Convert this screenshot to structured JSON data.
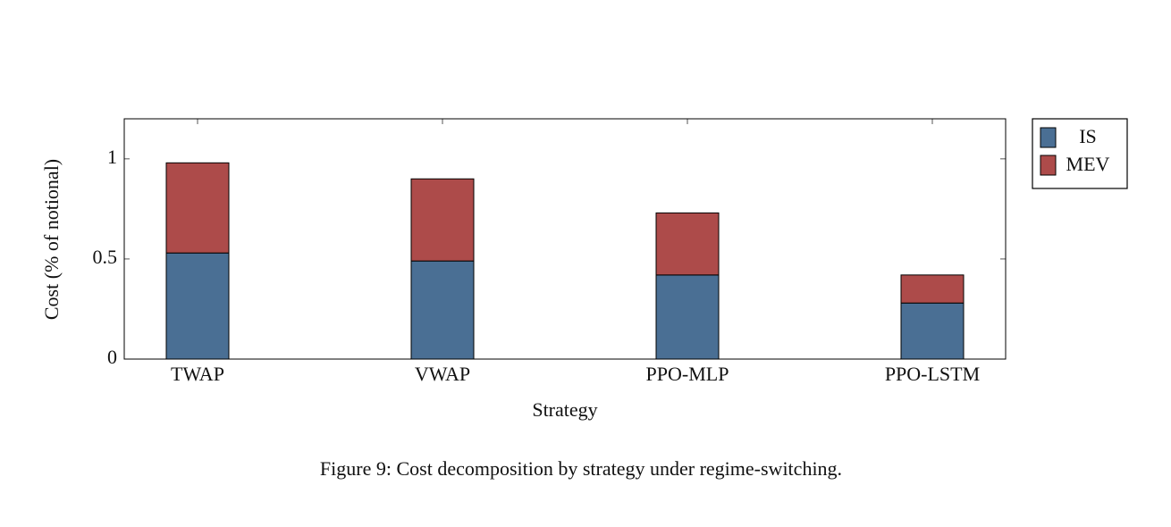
{
  "chart_data": {
    "type": "stacked-bar",
    "caption": "Figure 9: Cost decomposition by strategy under regime-switching.",
    "xlabel": "Strategy",
    "ylabel": "Cost (% of notional)",
    "categories": [
      "TWAP",
      "VWAP",
      "PPO-MLP",
      "PPO-LSTM"
    ],
    "series": [
      {
        "name": "IS",
        "color": "#4a6f94",
        "values": [
          0.53,
          0.49,
          0.42,
          0.28
        ]
      },
      {
        "name": "MEV",
        "color": "#ad4b4a",
        "values": [
          0.45,
          0.41,
          0.31,
          0.14
        ]
      }
    ],
    "ylim": [
      0,
      1.2
    ],
    "yticks": [
      0,
      0.5,
      1
    ],
    "grid": false,
    "legend": "outer-right"
  }
}
